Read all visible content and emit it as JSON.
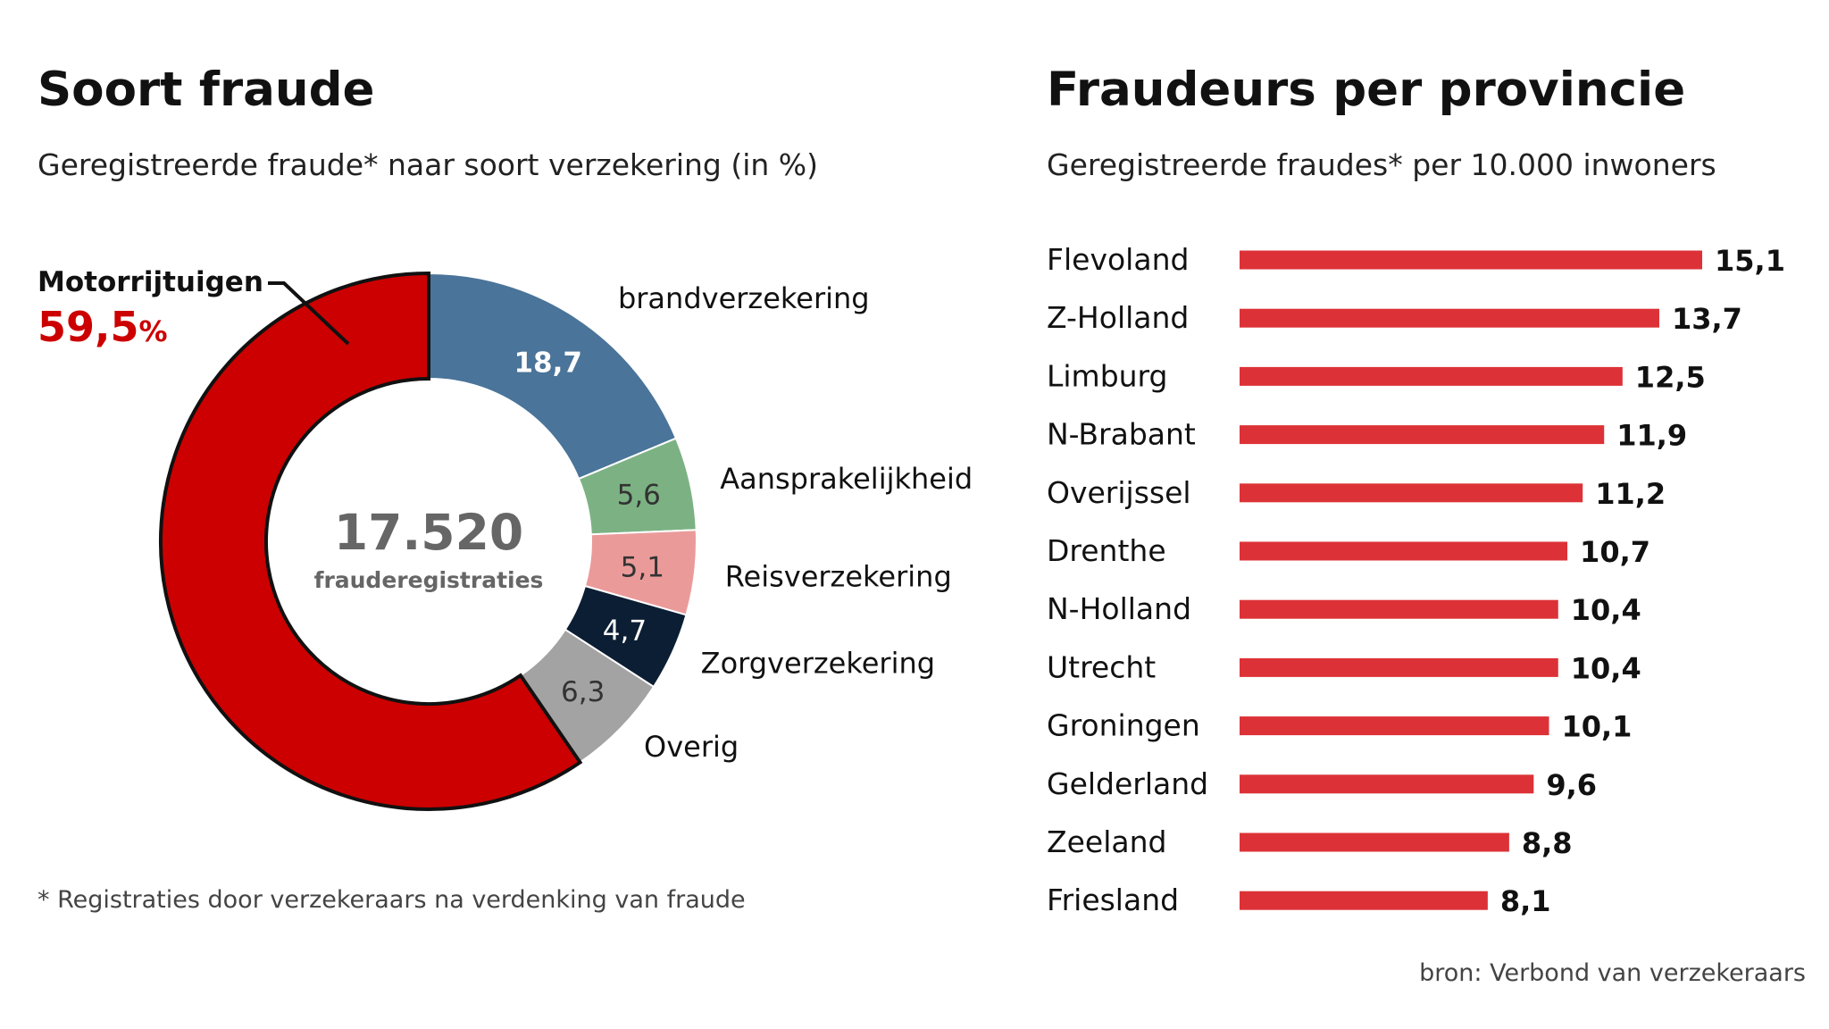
{
  "chart_data": [
    {
      "type": "pie",
      "title": "Soort fraude",
      "subtitle": "Geregistreerde fraude* naar soort verzekering (in %)",
      "center_value": "17.520",
      "center_label": "frauderegistraties",
      "slices": [
        {
          "label": "Motorrijtuigen",
          "value": 59.5,
          "value_text": "59,5",
          "unit": "%",
          "color": "#cc0000"
        },
        {
          "label": "brandverzekering",
          "value": 18.7,
          "value_text": "18,7",
          "color": "#4a7499"
        },
        {
          "label": "Aansprakelijkheid",
          "value": 5.6,
          "value_text": "5,6",
          "color": "#7cb283"
        },
        {
          "label": "Reisverzekering",
          "value": 5.1,
          "value_text": "5,1",
          "color": "#eb9a9a"
        },
        {
          "label": "Zorgverzekering",
          "value": 4.7,
          "value_text": "4,7",
          "color": "#0c1e33"
        },
        {
          "label": "Overig",
          "value": 6.3,
          "value_text": "6,3",
          "color": "#a3a3a3"
        }
      ],
      "footnote": "* Registraties door verzekeraars na verdenking van fraude"
    },
    {
      "type": "bar",
      "orientation": "horizontal",
      "title": "Fraudeurs per provincie",
      "subtitle": "Geregistreerde fraudes* per 10.000 inwoners",
      "categories": [
        "Flevoland",
        "Z-Holland",
        "Limburg",
        "N-Brabant",
        "Overijssel",
        "Drenthe",
        "N-Holland",
        "Utrecht",
        "Groningen",
        "Gelderland",
        "Zeeland",
        "Friesland"
      ],
      "values": [
        15.1,
        13.7,
        12.5,
        11.9,
        11.2,
        10.7,
        10.4,
        10.4,
        10.1,
        9.6,
        8.8,
        8.1
      ],
      "value_labels": [
        "15,1",
        "13,7",
        "12,5",
        "11,9",
        "11,2",
        "10,7",
        "10,4",
        "10,4",
        "10,1",
        "9,6",
        "8,8",
        "8,1"
      ],
      "color": "#dc3237"
    }
  ],
  "source": "bron:  Verbond van verzekeraars"
}
